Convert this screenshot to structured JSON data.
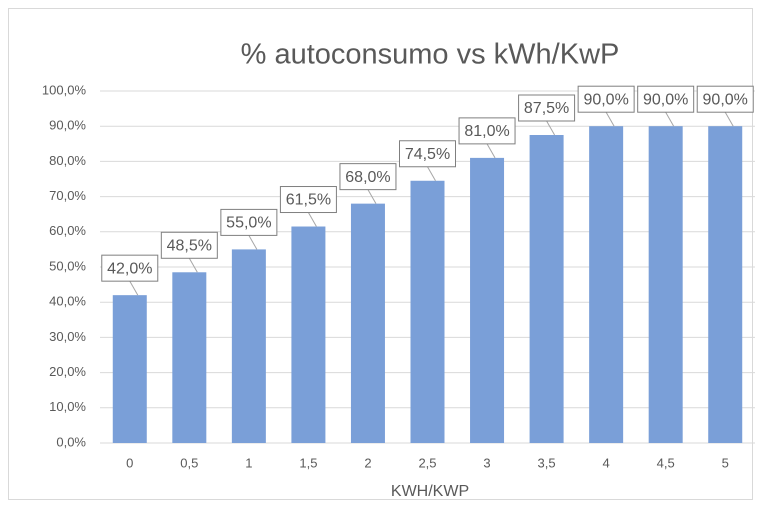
{
  "chart_data": {
    "type": "bar",
    "title": "% autoconsumo vs kWh/KwP",
    "x_label": "KWH/KWP",
    "categories": [
      "0",
      "0,5",
      "1",
      "1,5",
      "2",
      "2,5",
      "3",
      "3,5",
      "4",
      "4,5",
      "5"
    ],
    "values": [
      42,
      48.5,
      55,
      61.5,
      68,
      74.5,
      81,
      87.5,
      90,
      90,
      90
    ],
    "value_labels": [
      "42,0%",
      "48,5%",
      "55,0%",
      "61,5%",
      "68,0%",
      "74,5%",
      "81,0%",
      "87,5%",
      "90,0%",
      "90,0%",
      "90,0%"
    ],
    "color": "#7a9fd8",
    "ylim": [
      0,
      100
    ],
    "yticks": [
      {
        "value": 0,
        "label": "0,0%"
      },
      {
        "value": 10,
        "label": "10,0%"
      },
      {
        "value": 20,
        "label": "20,0%"
      },
      {
        "value": 30,
        "label": "30,0%"
      },
      {
        "value": 40,
        "label": "40,0%"
      },
      {
        "value": 50,
        "label": "50,0%"
      },
      {
        "value": 60,
        "label": "60,0%"
      },
      {
        "value": 70,
        "label": "70,0%"
      },
      {
        "value": 80,
        "label": "80,0%"
      },
      {
        "value": 90,
        "label": "90,0%"
      },
      {
        "value": 100,
        "label": "100,0%"
      }
    ],
    "grid": true
  }
}
